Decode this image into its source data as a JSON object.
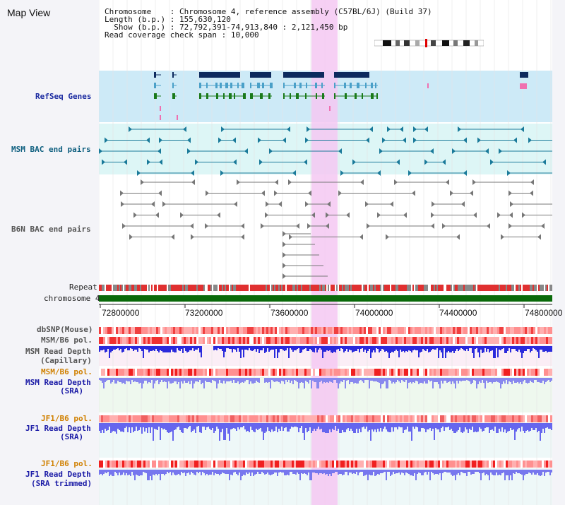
{
  "header": {
    "title": "Map View",
    "chromosome_label": "Chromosome",
    "chromosome_value": "Chromosome 4, reference assembly (C57BL/6J) (Build 37)",
    "length_label": "Length (b.p.)",
    "length_value": "155,630,120",
    "show_label": "Show (b.p.)",
    "show_value": "72,792,391-74,913,840 : 2,121,450 bp",
    "coverage_label": "Read coverage check span",
    "coverage_value": "10,000"
  },
  "tracks": {
    "refseq": "RefSeq Genes",
    "msm_bac": "MSM BAC end pairs",
    "b6n_bac": "B6N BAC end pairs",
    "repeat": "Repeat",
    "chromosome": "chromosome 4",
    "dbsnp": "dbSNP(Mouse)",
    "msm_b6_pol_1": "MSM/B6 pol.",
    "msm_read_depth_cap": "MSM Read Depth",
    "msm_read_depth_cap_sub": "(Capillary)",
    "msm_b6_pol_2": "MSM/B6 pol.",
    "msm_read_depth_sra": "MSM Read Depth",
    "msm_read_depth_sra_sub": "(SRA)",
    "jf1_b6_pol_1": "JF1/B6 pol.",
    "jf1_read_depth_sra": "JF1 Read Depth",
    "jf1_read_depth_sra_sub": "(SRA)",
    "jf1_b6_pol_2": "JF1/B6 pol.",
    "jf1_read_depth_trim": "JF1 Read Depth",
    "jf1_read_depth_trim_sub": "(SRA trimmed)"
  },
  "axis": {
    "ticks": [
      "72800000",
      "73200000",
      "73600000",
      "74000000",
      "74400000",
      "74800000"
    ]
  },
  "colors": {
    "highlight": "#f5c8f2",
    "refseq_bg": "#cdeaf7",
    "msm_bac_bg": "#ddf6f6",
    "gene_dark": "#0d2a5e",
    "gene_mid": "#4aa0c8",
    "gene_green": "#1a7a1a",
    "chromosome_bar": "#0a6a0a",
    "depth_blue": "#2a2adc",
    "depth_light": "#6666ee"
  }
}
